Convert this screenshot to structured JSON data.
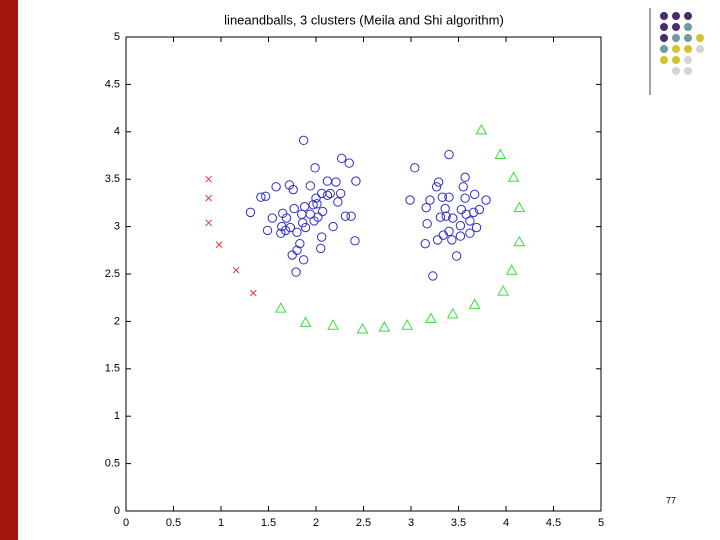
{
  "page_number": "77",
  "chart_data": {
    "type": "scatter",
    "title": "lineandballs, 3 clusters (Meila and Shi algorithm)",
    "xlim": [
      0,
      5
    ],
    "ylim": [
      0,
      5
    ],
    "xticks": [
      0,
      0.5,
      1,
      1.5,
      2,
      2.5,
      3,
      3.5,
      4,
      4.5,
      5
    ],
    "yticks": [
      0,
      0.5,
      1,
      1.5,
      2,
      2.5,
      3,
      3.5,
      4,
      4.5,
      5
    ],
    "series": [
      {
        "color": "#e03a3a",
        "marker": "x",
        "x": [
          0.87,
          0.87,
          0.87,
          0.98,
          1.16,
          1.34
        ],
        "values": [
          3.5,
          3.3,
          3.04,
          2.81,
          2.54,
          2.3
        ]
      },
      {
        "color": "#2f2fc8",
        "marker": "circle",
        "x": [
          1.87,
          1.99,
          2.27,
          2.35,
          2.12,
          2.42,
          1.94,
          2.06,
          2.12,
          1.72,
          1.76,
          1.58,
          1.47,
          1.42,
          1.31,
          1.54,
          1.65,
          1.69,
          1.77,
          1.85,
          1.88,
          1.97,
          2.01,
          2.0,
          2.15,
          2.23,
          2.31,
          2.37,
          2.26,
          2.21,
          2.07,
          2.02,
          1.98,
          1.94,
          1.86,
          1.8,
          1.73,
          1.68,
          1.64,
          1.49,
          1.83,
          1.8,
          1.75,
          1.87,
          2.05,
          2.06,
          2.18,
          2.41,
          1.79,
          1.63,
          1.89,
          3.4,
          3.04,
          3.29,
          3.27,
          3.57,
          3.55,
          3.67,
          3.2,
          3.33,
          3.4,
          3.57,
          3.79,
          2.99,
          3.16,
          3.36,
          3.53,
          3.58,
          3.66,
          3.72,
          3.37,
          3.44,
          3.62,
          3.52,
          3.4,
          3.17,
          3.69,
          3.15,
          3.28,
          3.34,
          3.43,
          3.52,
          3.62,
          3.48,
          3.23,
          3.31
        ],
        "values": [
          3.91,
          3.62,
          3.72,
          3.67,
          3.48,
          3.48,
          3.43,
          3.35,
          3.33,
          3.44,
          3.39,
          3.42,
          3.32,
          3.31,
          3.15,
          3.09,
          3.14,
          3.09,
          3.19,
          3.13,
          3.21,
          3.23,
          3.24,
          3.3,
          3.35,
          3.26,
          3.11,
          3.11,
          3.35,
          3.47,
          3.16,
          3.1,
          3.06,
          3.13,
          3.04,
          2.94,
          2.99,
          2.96,
          3.0,
          2.96,
          2.82,
          2.75,
          2.7,
          2.65,
          2.77,
          2.89,
          3.0,
          2.85,
          2.52,
          2.93,
          2.99,
          3.76,
          3.62,
          3.47,
          3.42,
          3.52,
          3.42,
          3.34,
          3.28,
          3.31,
          3.31,
          3.3,
          3.28,
          3.28,
          3.2,
          3.19,
          3.18,
          3.13,
          3.15,
          3.18,
          3.11,
          3.09,
          3.06,
          3.01,
          2.95,
          3.03,
          2.99,
          2.82,
          2.86,
          2.91,
          2.86,
          2.9,
          2.93,
          2.69,
          2.48,
          3.1
        ]
      },
      {
        "color": "#3bdc3b",
        "marker": "triangle",
        "x": [
          1.63,
          1.89,
          2.18,
          2.49,
          2.72,
          2.96,
          3.21,
          3.44,
          3.67,
          3.97,
          4.06,
          4.14,
          4.14,
          4.08,
          3.94,
          3.74
        ],
        "values": [
          2.14,
          1.99,
          1.96,
          1.92,
          1.94,
          1.96,
          2.03,
          2.08,
          2.18,
          2.32,
          2.54,
          2.84,
          3.2,
          3.52,
          3.76,
          4.02
        ]
      }
    ]
  }
}
